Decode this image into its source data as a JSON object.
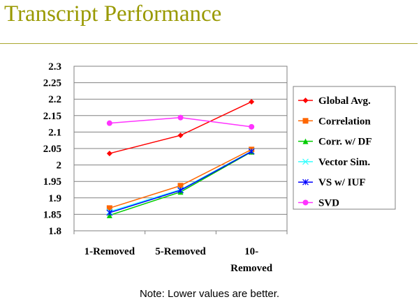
{
  "slide": {
    "title": "Transcript Performance",
    "note": "Note: Lower values are better.",
    "title_color": "#999900"
  },
  "chart_data": {
    "type": "line",
    "categories": [
      "1-Removed",
      "5-Removed",
      "10-Removed"
    ],
    "category_labels": [
      [
        "1-Removed"
      ],
      [
        "5-Removed"
      ],
      [
        "10-",
        "Removed"
      ]
    ],
    "ylim": [
      1.8,
      2.3
    ],
    "yticks": [
      "1.8",
      "1.85",
      "1.9",
      "1.95",
      "2",
      "2.05",
      "2.1",
      "2.15",
      "2.2",
      "2.25",
      "2.3"
    ],
    "grid": true,
    "legend_position": "right",
    "series": [
      {
        "name": "Global Avg.",
        "color": "#ff0000",
        "marker": "diamond",
        "values": [
          2.035,
          2.09,
          2.192
        ]
      },
      {
        "name": "Correlation",
        "color": "#ff6600",
        "marker": "square",
        "values": [
          1.869,
          1.937,
          2.047
        ]
      },
      {
        "name": "Corr. w/ DF",
        "color": "#00cc00",
        "marker": "triangle",
        "values": [
          1.847,
          1.918,
          2.04
        ]
      },
      {
        "name": "Vector Sim.",
        "color": "#33ffff",
        "marker": "x",
        "values": [
          1.858,
          1.925,
          2.042
        ]
      },
      {
        "name": "VS w/ IUF",
        "color": "#0000ff",
        "marker": "star",
        "values": [
          1.855,
          1.923,
          2.041
        ]
      },
      {
        "name": "SVD",
        "color": "#ff33ff",
        "marker": "circle",
        "values": [
          2.127,
          2.144,
          2.116
        ]
      }
    ]
  }
}
